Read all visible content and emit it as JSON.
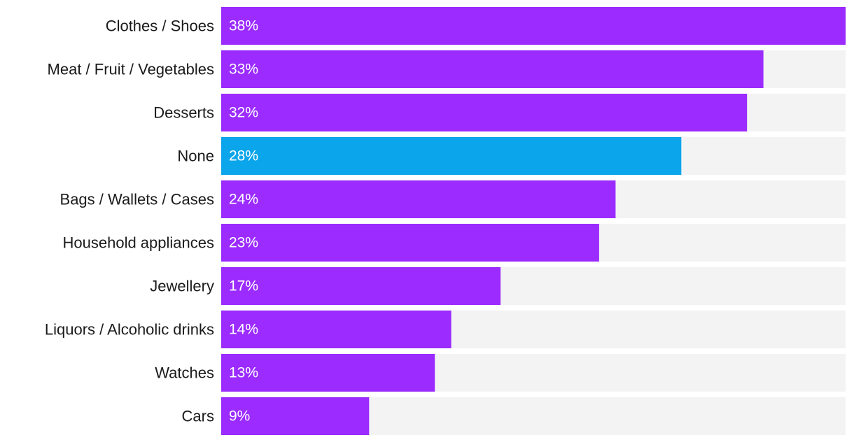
{
  "chart_data": {
    "type": "bar",
    "orientation": "horizontal",
    "categories": [
      "Clothes / Shoes",
      "Meat / Fruit / Vegetables",
      "Desserts",
      "None",
      "Bags / Wallets / Cases",
      "Household appliances",
      "Jewellery",
      "Liquors / Alcoholic drinks",
      "Watches",
      "Cars"
    ],
    "values": [
      38,
      33,
      32,
      28,
      24,
      23,
      17,
      14,
      13,
      9
    ],
    "value_labels": [
      "38%",
      "33%",
      "32%",
      "28%",
      "24%",
      "23%",
      "17%",
      "14%",
      "13%",
      "9%"
    ],
    "xlim": [
      0,
      38
    ],
    "grid": false,
    "legend": "none",
    "title": "",
    "xlabel": "",
    "ylabel": ""
  },
  "colors": {
    "bar": "#9b2bfe",
    "highlight": "#0aa5ea",
    "track": "#f3f3f3"
  },
  "highlighted_category": "None"
}
